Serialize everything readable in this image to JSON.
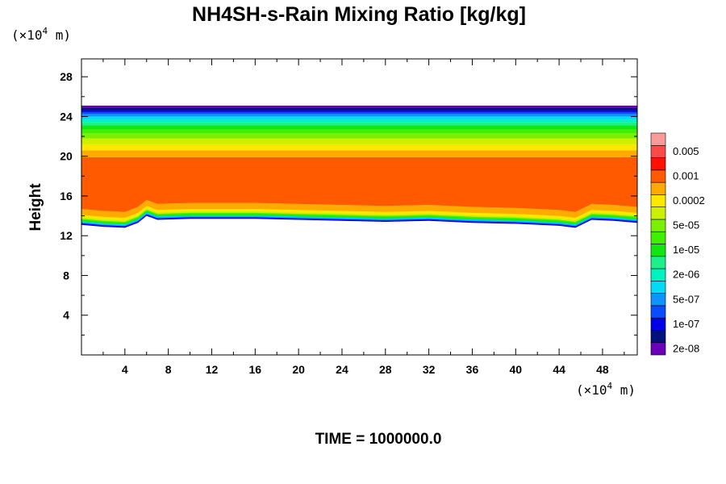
{
  "chart_data": {
    "type": "contour",
    "title": "NH4SH-s-Rain Mixing Ratio [kg/kg]",
    "ylabel": "Height",
    "x_unit": {
      "prefix": "(×10",
      "exp": "4",
      "suffix": " m)"
    },
    "y_unit": {
      "prefix": "(×10",
      "exp": "4",
      "suffix": " m)"
    },
    "xlim": [
      0,
      51.2
    ],
    "ylim": [
      0,
      29.8
    ],
    "x_ticks": [
      4,
      8,
      12,
      16,
      20,
      24,
      28,
      32,
      36,
      40,
      44,
      48
    ],
    "y_ticks": [
      4,
      8,
      12,
      16,
      20,
      24,
      28
    ],
    "footer": "TIME = 1000000.0",
    "colorbar": {
      "colors": [
        "#6a00b8",
        "#00107c",
        "#0000e8",
        "#0a4cff",
        "#0f94ff",
        "#00dcf5",
        "#00f2c0",
        "#1cf08a",
        "#12e612",
        "#40f000",
        "#7af000",
        "#ccf000",
        "#ffe800",
        "#ffaa00",
        "#ff5a00",
        "#ff1000",
        "#ff4a4a",
        "#ff9a9a"
      ],
      "labels": [
        "2e-08",
        "",
        "1e-07",
        "",
        "5e-07",
        "",
        "2e-06",
        "",
        "1e-05",
        "",
        "5e-05",
        "",
        "0.0002",
        "",
        "0.001",
        "",
        "0.005",
        ""
      ]
    },
    "field": {
      "top_height": 25.1,
      "orange_top_height": 19.9,
      "band_edges_above_orange": [
        19.9,
        20.6,
        21.2,
        21.8,
        22.3,
        22.7,
        23.1,
        23.4,
        23.7,
        24.0,
        24.25,
        24.45,
        24.65,
        24.85,
        25.1
      ],
      "band_colors_above_orange": [
        "#ffaa00",
        "#ffe800",
        "#ccf000",
        "#7af000",
        "#40f000",
        "#12e612",
        "#1cf08a",
        "#00f2c0",
        "#00dcf5",
        "#0f94ff",
        "#0a4cff",
        "#0000e8",
        "#00107c",
        "#6a00b8"
      ],
      "orange_bottom": [
        [
          0,
          14.7
        ],
        [
          2,
          14.5
        ],
        [
          4,
          14.4
        ],
        [
          5.2,
          14.9
        ],
        [
          6,
          15.6
        ],
        [
          7,
          15.2
        ],
        [
          10,
          15.3
        ],
        [
          16,
          15.3
        ],
        [
          20,
          15.2
        ],
        [
          24,
          15.1
        ],
        [
          28,
          15.0
        ],
        [
          32,
          15.1
        ],
        [
          36,
          14.9
        ],
        [
          40,
          14.8
        ],
        [
          44,
          14.6
        ],
        [
          45.5,
          14.4
        ],
        [
          47,
          15.2
        ],
        [
          49,
          15.1
        ],
        [
          51.2,
          14.9
        ]
      ],
      "lower_band_offsets": [
        -0.6,
        -0.25,
        -0.15,
        -0.15,
        -0.1,
        -0.1,
        -0.1,
        -0.15
      ],
      "lower_band_colors": [
        "#ffaa00",
        "#ffe800",
        "#ccf000",
        "#40f000",
        "#12e612",
        "#00dcf5",
        "#0f94ff",
        "#0000e8"
      ]
    }
  }
}
